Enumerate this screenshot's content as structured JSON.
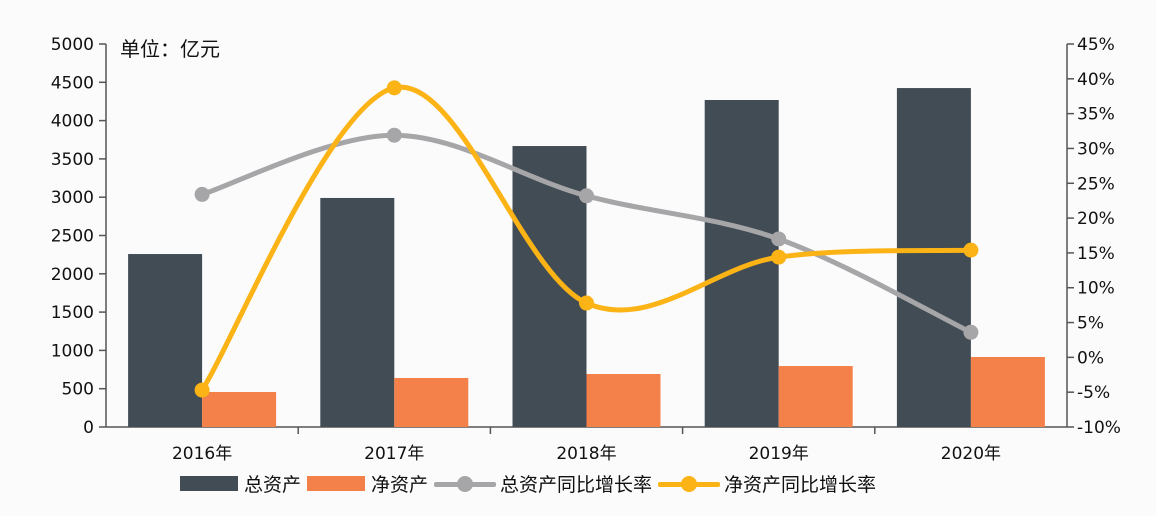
{
  "chart_data": {
    "type": "bar+line",
    "title": "",
    "unit_label": "单位：亿元",
    "categories": [
      "2016年",
      "2017年",
      "2018年",
      "2019年",
      "2020年"
    ],
    "series": [
      {
        "name": "总资产",
        "type": "bar",
        "axis": "left",
        "color": "#424c55",
        "values": [
          2258,
          2990,
          3668,
          4269,
          4425
        ]
      },
      {
        "name": "净资产",
        "type": "bar",
        "axis": "left",
        "color": "#f4814a",
        "values": [
          457,
          640,
          692,
          796,
          914
        ]
      },
      {
        "name": "总资产同比增长率",
        "type": "line",
        "axis": "right",
        "color": "#a6a6a8",
        "values": [
          23.4,
          31.9,
          23.2,
          17.0,
          3.6
        ]
      },
      {
        "name": "净资产同比增长率",
        "type": "line",
        "axis": "right",
        "color": "#fbb316",
        "values": [
          -4.7,
          38.7,
          7.8,
          14.4,
          15.4
        ]
      }
    ],
    "left_axis": {
      "ylim": [
        0,
        5000
      ],
      "ticks": [
        "0",
        "500",
        "1000",
        "1500",
        "2000",
        "2500",
        "3000",
        "3500",
        "4000",
        "4500",
        "5000"
      ]
    },
    "right_axis": {
      "ylim": [
        -10,
        45
      ],
      "ticks": [
        "-10%",
        "-5%",
        "0%",
        "5%",
        "10%",
        "15%",
        "20%",
        "25%",
        "30%",
        "35%",
        "40%",
        "45%"
      ]
    },
    "grid": false,
    "legend_position": "bottom"
  },
  "legend": {
    "items": [
      {
        "label": "总资产",
        "kind": "bar",
        "color": "#424c55"
      },
      {
        "label": "净资产",
        "kind": "bar",
        "color": "#f4814a"
      },
      {
        "label": "总资产同比增长率",
        "kind": "line",
        "color": "#a6a6a8"
      },
      {
        "label": "净资产同比增长率",
        "kind": "line",
        "color": "#fbb316"
      }
    ]
  }
}
